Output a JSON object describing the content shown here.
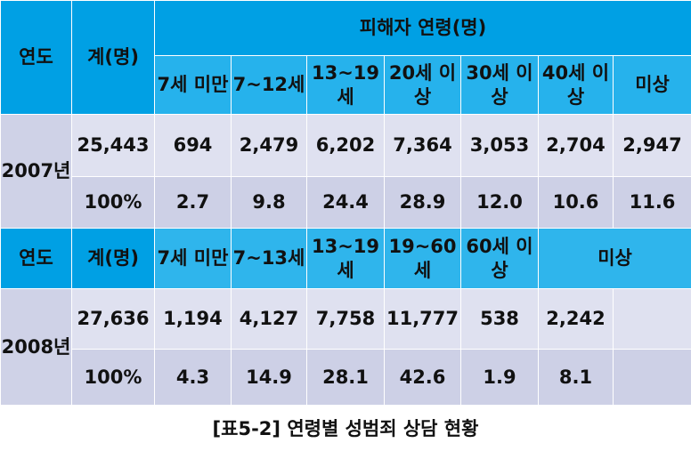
{
  "header1": {
    "year": "연도",
    "total": "계(명)",
    "group": "피해자 연령(명)",
    "ages": [
      "7세 미만",
      "7~12세",
      "13~19세",
      "20세 이상",
      "30세 이상",
      "40세 이상",
      "미상"
    ]
  },
  "y2007": {
    "year": "2007년",
    "total": "25,443",
    "counts": [
      "694",
      "2,479",
      "6,202",
      "7,364",
      "3,053",
      "2,704",
      "2,947"
    ],
    "pct_total": "100%",
    "pcts": [
      "2.7",
      "9.8",
      "24.4",
      "28.9",
      "12.0",
      "10.6",
      "11.6"
    ]
  },
  "header2": {
    "year": "연도",
    "total": "계(명)",
    "ages": [
      "7세 미만",
      "7~13세",
      "13~19세",
      "19~60세",
      "60세 이상",
      "미상"
    ]
  },
  "y2008": {
    "year": "2008년",
    "total": "27,636",
    "counts": [
      "1,194",
      "4,127",
      "7,758",
      "11,777",
      "538",
      "2,242",
      ""
    ],
    "pct_total": "100%",
    "pcts": [
      "4.3",
      "14.9",
      "28.1",
      "42.6",
      "1.9",
      "8.1",
      ""
    ]
  },
  "caption": "[표5-2] 연령별 성범죄 상담 현황"
}
